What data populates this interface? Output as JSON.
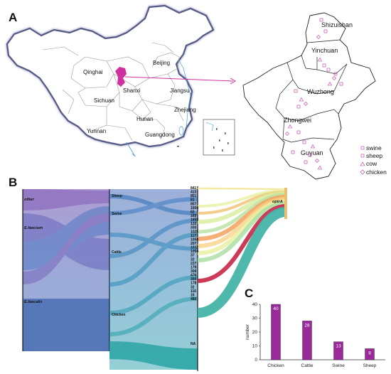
{
  "panels": {
    "a": "A",
    "b": "B",
    "c": "C"
  },
  "map": {
    "provinces": [
      "Beijing",
      "Qinghai",
      "Shanxi",
      "Jiangsu",
      "Sichuan",
      "Zhejiang",
      "Hunan",
      "Yunnan",
      "Guangdong"
    ],
    "ningxia_cities": [
      "Shizuishan",
      "Yinchuan",
      "Wuzhong",
      "Zhongwei",
      "Guyuan"
    ],
    "legend": [
      {
        "label": "swine",
        "icon": "square-marker-icon"
      },
      {
        "label": "sheep",
        "icon": "square-marker-icon"
      },
      {
        "label": "cow",
        "icon": "triangle-marker-icon"
      },
      {
        "label": "chicken",
        "icon": "diamond-marker-icon"
      }
    ],
    "highlight_color": "#d0309e"
  },
  "sankey": {
    "left_labels": [
      "other",
      "E.faecium",
      "E.faecalis"
    ],
    "host_labels": [
      "Sheep",
      "Swine",
      "Cattle",
      "Chicken"
    ],
    "st_labels": [
      "841",
      "413",
      "851",
      "81",
      "857",
      "1604",
      "62",
      "165",
      "1653",
      "122",
      "330",
      "1025",
      "117",
      "1058",
      "207",
      "1012",
      "1054",
      "37",
      "32",
      "227",
      "179",
      "308",
      "476",
      "300",
      "178",
      "32",
      "116",
      "16",
      "480",
      "NA"
    ],
    "gene_label": "optrA"
  },
  "chart_data": {
    "type": "bar",
    "categories": [
      "Chicken",
      "Cattle",
      "Swine",
      "Sheep"
    ],
    "values": [
      40,
      28,
      13,
      8
    ],
    "ylabel": "number",
    "ylim": [
      0,
      40
    ],
    "yticks": [
      0,
      10,
      20,
      30,
      40
    ],
    "bar_color": "#9a2a9a"
  }
}
